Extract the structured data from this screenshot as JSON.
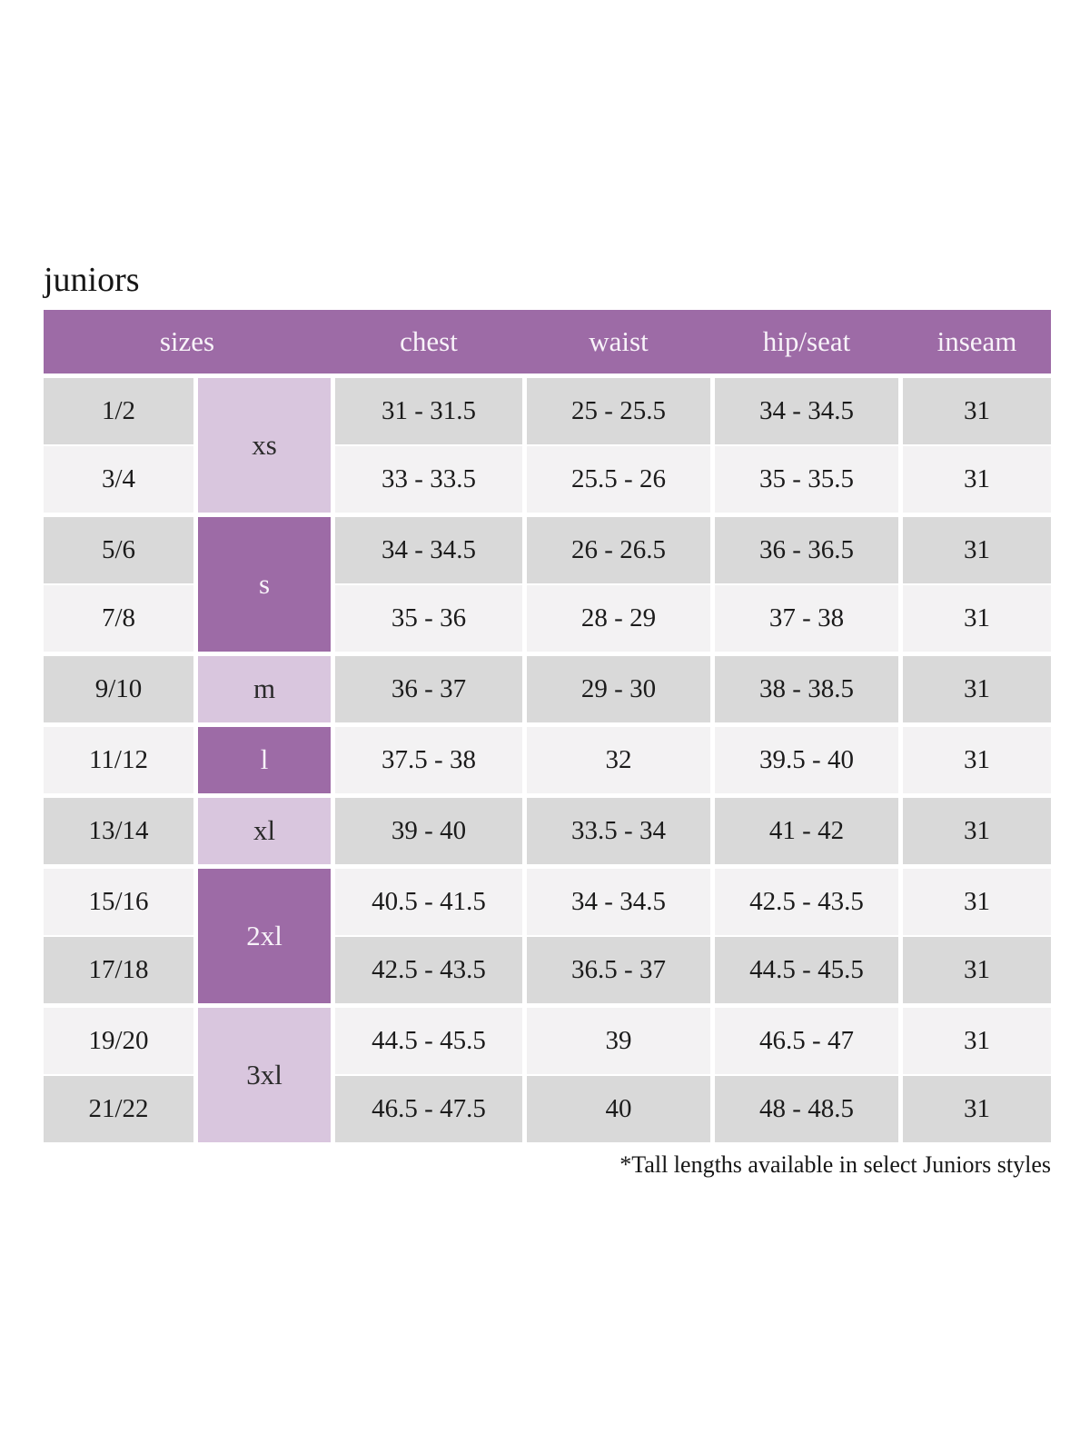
{
  "page": {
    "title": "juniors",
    "footnote": "*Tall lengths available in select Juniors styles"
  },
  "colors": {
    "header_bg": "#9d6ba6",
    "header_text": "#f8f3f9",
    "size_dark_bg": "#9d6ba6",
    "size_light_bg": "#d9c6de",
    "row_dark_bg": "#d9d9d9",
    "row_light_bg": "#f3f2f3",
    "body_text": "#1b1b1b"
  },
  "table": {
    "header": {
      "sizes": "sizes",
      "chest": "chest",
      "waist": "waist",
      "hip_seat": "hip/seat",
      "inseam": "inseam"
    },
    "groups": [
      {
        "letter": "xs",
        "rows": [
          {
            "size": "1/2",
            "chest": "31 - 31.5",
            "waist": "25 - 25.5",
            "hip_seat": "34 - 34.5",
            "inseam": "31"
          },
          {
            "size": "3/4",
            "chest": "33 - 33.5",
            "waist": "25.5 - 26",
            "hip_seat": "35 - 35.5",
            "inseam": "31"
          }
        ]
      },
      {
        "letter": "s",
        "rows": [
          {
            "size": "5/6",
            "chest": "34 - 34.5",
            "waist": "26 - 26.5",
            "hip_seat": "36 - 36.5",
            "inseam": "31"
          },
          {
            "size": "7/8",
            "chest": "35 - 36",
            "waist": "28 - 29",
            "hip_seat": "37 - 38",
            "inseam": "31"
          }
        ]
      },
      {
        "letter": "m",
        "rows": [
          {
            "size": "9/10",
            "chest": "36 - 37",
            "waist": "29 - 30",
            "hip_seat": "38 - 38.5",
            "inseam": "31"
          }
        ]
      },
      {
        "letter": "l",
        "rows": [
          {
            "size": "11/12",
            "chest": "37.5 - 38",
            "waist": "32",
            "hip_seat": "39.5 - 40",
            "inseam": "31"
          }
        ]
      },
      {
        "letter": "xl",
        "rows": [
          {
            "size": "13/14",
            "chest": "39 - 40",
            "waist": "33.5 - 34",
            "hip_seat": "41 - 42",
            "inseam": "31"
          }
        ]
      },
      {
        "letter": "2xl",
        "rows": [
          {
            "size": "15/16",
            "chest": "40.5 - 41.5",
            "waist": "34 - 34.5",
            "hip_seat": "42.5 - 43.5",
            "inseam": "31"
          },
          {
            "size": "17/18",
            "chest": "42.5 - 43.5",
            "waist": "36.5 - 37",
            "hip_seat": "44.5 - 45.5",
            "inseam": "31"
          }
        ]
      },
      {
        "letter": "3xl",
        "rows": [
          {
            "size": "19/20",
            "chest": "44.5 - 45.5",
            "waist": "39",
            "hip_seat": "46.5 - 47",
            "inseam": "31"
          },
          {
            "size": "21/22",
            "chest": "46.5 - 47.5",
            "waist": "40",
            "hip_seat": "48 - 48.5",
            "inseam": "31"
          }
        ]
      }
    ]
  }
}
